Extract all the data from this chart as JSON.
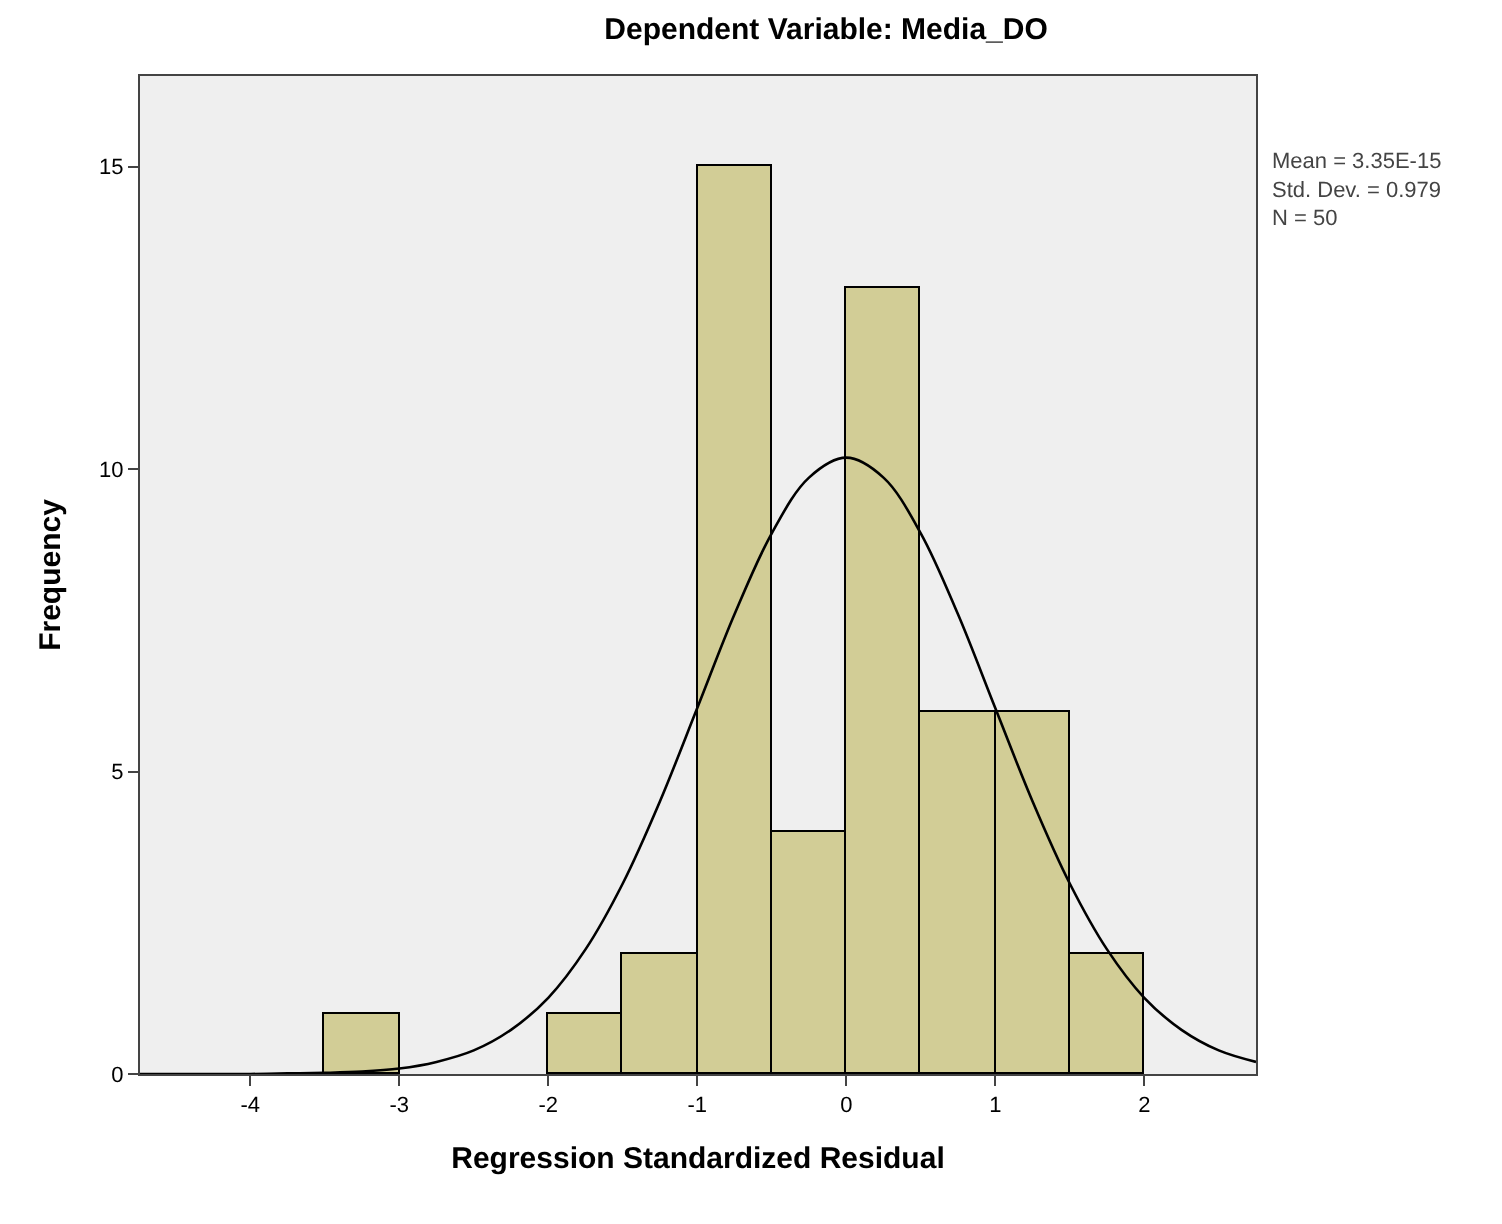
{
  "chart_data": {
    "type": "histogram",
    "title": "Dependent Variable: Media_DO",
    "xlabel": "Regression Standardized Residual",
    "ylabel": "Frequency",
    "bins": [
      -3.5,
      -3,
      -2.5,
      -2,
      -1.5,
      -1,
      -0.5,
      0,
      0.5,
      1,
      1.5,
      2
    ],
    "values": [
      1,
      0,
      0,
      1,
      2,
      15,
      4,
      13,
      6,
      6,
      2
    ],
    "color": "#d2cd96",
    "series": [
      {
        "type": "line",
        "color": "#000000",
        "x": [
          -4.74,
          -4.5,
          -4.25,
          -4,
          -3.75,
          -3.5,
          -3.25,
          -3,
          -2.75,
          -2.5,
          -2.25,
          -2,
          -1.75,
          -1.5,
          -1.25,
          -1,
          -0.75,
          -0.5,
          -0.25,
          0,
          0.25,
          0.5,
          0.75,
          1,
          1.25,
          1.5,
          1.75,
          2,
          2.25,
          2.5,
          2.75
        ],
        "values": [
          0.0,
          0.0,
          0.0,
          0.0,
          0.01,
          0.02,
          0.04,
          0.09,
          0.2,
          0.39,
          0.73,
          1.26,
          2.06,
          3.15,
          4.51,
          6.05,
          7.6,
          8.94,
          9.86,
          10.19,
          9.86,
          8.94,
          7.6,
          6.05,
          4.51,
          3.15,
          2.06,
          1.26,
          0.73,
          0.39,
          0.2
        ]
      }
    ],
    "annotations": [
      "Mean = 3.35E-15",
      "Std. Dev. = 0.979",
      "N = 50"
    ],
    "xlim": [
      -4.74,
      2.75
    ],
    "ylim": [
      0,
      16.5
    ],
    "xticks": [
      -4,
      -3,
      -2,
      -1,
      0,
      1,
      2
    ],
    "yticks": [
      0,
      5,
      10,
      15
    ],
    "grid": false
  }
}
